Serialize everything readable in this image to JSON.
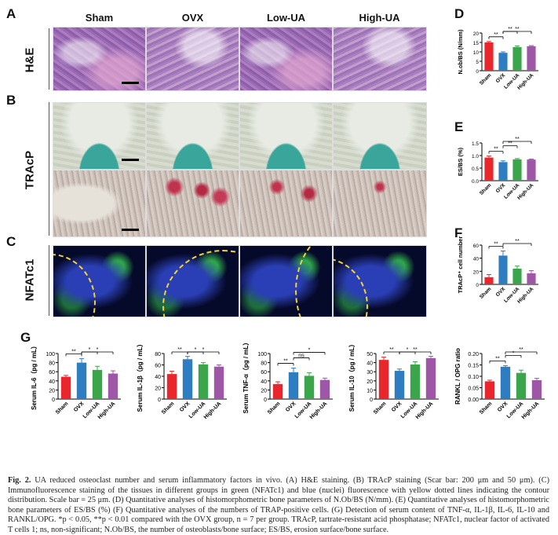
{
  "panels": {
    "A": "A",
    "B": "B",
    "C": "C",
    "D": "D",
    "E": "E",
    "F": "F",
    "G": "G"
  },
  "columns": [
    "Sham",
    "OVX",
    "Low-UA",
    "High-UA"
  ],
  "rows": {
    "he": "H&E",
    "trap": "TRAcP",
    "nfat": "NFATc1"
  },
  "colors": {
    "sham": "#e8262b",
    "ovx": "#2f7dc1",
    "low": "#3aa54a",
    "high": "#9d57a6"
  },
  "chart_data": [
    {
      "id": "D",
      "type": "bar",
      "categories": [
        "Sham",
        "OVX",
        "Low-UA",
        "High-UA"
      ],
      "values": [
        15,
        9.5,
        12.5,
        13
      ],
      "errors": [
        0.5,
        0.5,
        0.6,
        0.3
      ],
      "ylabel": "N.ob/BS (N/mm)",
      "ylim": [
        0,
        20
      ],
      "yticks": [
        "0",
        "5",
        "10",
        "15",
        "20"
      ],
      "sig": [
        {
          "a": 0,
          "b": 1,
          "t": "**"
        },
        {
          "a": 1,
          "b": 2,
          "t": "**"
        },
        {
          "a": 1,
          "b": 3,
          "t": "**"
        }
      ]
    },
    {
      "id": "E",
      "type": "bar",
      "categories": [
        "Sham",
        "OVX",
        "Low-UA",
        "High-UA"
      ],
      "values": [
        0.92,
        0.74,
        0.85,
        0.84
      ],
      "errors": [
        0.06,
        0.05,
        0.03,
        0.02
      ],
      "ylabel": "ES/BS (%)",
      "ylim": [
        0,
        1.5
      ],
      "yticks": [
        "0.0",
        "0.5",
        "1.0",
        "1.5"
      ],
      "sig": [
        {
          "a": 0,
          "b": 1,
          "t": "**"
        },
        {
          "a": 1,
          "b": 2,
          "t": "**"
        },
        {
          "a": 1,
          "b": 3,
          "t": "**"
        }
      ]
    },
    {
      "id": "F",
      "type": "bar",
      "categories": [
        "Sham",
        "OVX",
        "Low-UA",
        "High-UA"
      ],
      "values": [
        11,
        44,
        24,
        17
      ],
      "errors": [
        4,
        7,
        4,
        4
      ],
      "ylabel": "TRAcP⁺ cell number",
      "ylim": [
        0,
        60
      ],
      "yticks": [
        "0",
        "20",
        "40",
        "60"
      ],
      "sig": [
        {
          "a": 0,
          "b": 1,
          "t": "**"
        },
        {
          "a": 1,
          "b": 3,
          "t": "**"
        }
      ]
    },
    {
      "id": "G1",
      "type": "bar",
      "categories": [
        "Sham",
        "OVX",
        "Low-UA",
        "High-UA"
      ],
      "values": [
        49,
        80,
        64,
        56
      ],
      "errors": [
        3,
        9,
        8,
        6
      ],
      "ylabel": "Serum IL-6（pg / mL）",
      "ylim": [
        0,
        100
      ],
      "yticks": [
        "0",
        "20",
        "40",
        "60",
        "80",
        "100"
      ],
      "sig": [
        {
          "a": 0,
          "b": 1,
          "t": "**"
        },
        {
          "a": 1,
          "b": 2,
          "t": "*"
        },
        {
          "a": 1,
          "b": 3,
          "t": "*"
        }
      ]
    },
    {
      "id": "G2",
      "type": "bar",
      "categories": [
        "Sham",
        "OVX",
        "Low-UA",
        "High-UA"
      ],
      "values": [
        44,
        70,
        61,
        57
      ],
      "errors": [
        5,
        5,
        3,
        3
      ],
      "ylabel": "Serum IL-1β（pg / mL）",
      "ylim": [
        0,
        80
      ],
      "yticks": [
        "0",
        "20",
        "40",
        "60",
        "80"
      ],
      "sig": [
        {
          "a": 0,
          "b": 1,
          "t": "**"
        },
        {
          "a": 1,
          "b": 2,
          "t": "*"
        },
        {
          "a": 1,
          "b": 3,
          "t": "*"
        }
      ]
    },
    {
      "id": "G3",
      "type": "bar",
      "categories": [
        "Sham",
        "OVX",
        "Low-UA",
        "High-UA"
      ],
      "values": [
        33,
        59,
        51,
        42
      ],
      "errors": [
        5,
        9,
        7,
        4
      ],
      "ylabel": "Serum TNF-α（pg / mL）",
      "ylim": [
        0,
        100
      ],
      "yticks": [
        "0",
        "20",
        "40",
        "60",
        "80",
        "100"
      ],
      "sig": [
        {
          "a": 0,
          "b": 1,
          "t": "**"
        },
        {
          "a": 1,
          "b": 2,
          "t": "ns"
        },
        {
          "a": 1,
          "b": 3,
          "t": "*"
        }
      ]
    },
    {
      "id": "G4",
      "type": "bar",
      "categories": [
        "Sham",
        "OVX",
        "Low-UA",
        "High-UA"
      ],
      "values": [
        43,
        31,
        38,
        45
      ],
      "errors": [
        3,
        2,
        3,
        2
      ],
      "ylabel": "Serum IL-10（pg / mL）",
      "ylim": [
        0,
        50
      ],
      "yticks": [
        "0",
        "10",
        "20",
        "30",
        "40",
        "50"
      ],
      "sig": [
        {
          "a": 0,
          "b": 1,
          "t": "**"
        },
        {
          "a": 1,
          "b": 2,
          "t": "*"
        },
        {
          "a": 1,
          "b": 3,
          "t": "**"
        }
      ]
    },
    {
      "id": "G5",
      "type": "bar",
      "categories": [
        "Sham",
        "OVX",
        "Low-UA",
        "High-UA"
      ],
      "values": [
        0.078,
        0.142,
        0.115,
        0.083
      ],
      "errors": [
        0.005,
        0.005,
        0.012,
        0.008
      ],
      "ylabel": "RANKL / OPG ratio",
      "ylim": [
        0,
        0.2
      ],
      "yticks": [
        "0.00",
        "0.05",
        "0.10",
        "0.15",
        "0.20"
      ],
      "sig": [
        {
          "a": 0,
          "b": 1,
          "t": "**"
        },
        {
          "a": 1,
          "b": 2,
          "t": "*"
        },
        {
          "a": 1,
          "b": 3,
          "t": "**"
        }
      ]
    }
  ],
  "caption": {
    "lead": "Fig. 2.",
    "text": " UA reduced osteoclast number and serum inflammatory factors in vivo. (A) H&E staining. (B) TRAcP staining (Scar bar: 200 μm and 50 μm). (C) Immunofluorescence staining of the tissues in different groups in green (NFATc1) and blue (nuclei) fluorescence with yellow dotted lines indicating the contour distribution. Scale bar = 25 μm. (D) Quantitative analyses of histomorphometric bone parameters of N.Ob/BS (N/mm). (E) Quantitative analyses of histomorphometric bone parameters of ES/BS (%) (F) Quantitative analyses of the numbers of TRAP-positive cells. (G) Detection of serum content of TNF-α, IL-1β, IL-6, IL-10 and RANKL/OPG. *p < 0.05, **p < 0.01 compared with the OVX group, n = 7 per group. TRAcP, tartrate-resistant acid phosphatase; NFATc1, nuclear factor of activated T cells 1; ns, non-significant; N.Ob/BS, the number of osteoblasts/bone surface; ES/BS, erosion surface/bone surface."
  }
}
